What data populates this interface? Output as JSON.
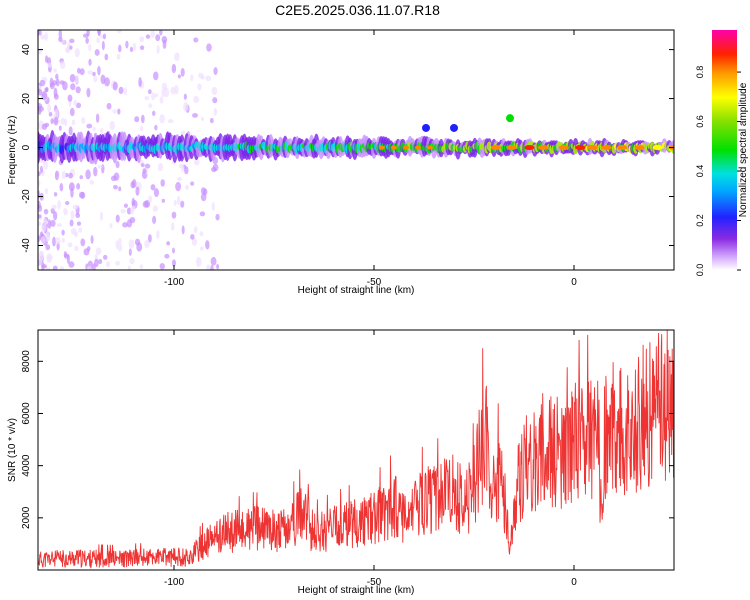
{
  "title": "C2E5.2025.036.11.07.R18",
  "chart_data": [
    {
      "type": "heatmap",
      "xlabel": "Height of straight line (km)",
      "ylabel": "Frequency (Hz)",
      "xlim": [
        -134,
        25
      ],
      "ylim": [
        -50,
        48
      ],
      "xticks": [
        -100,
        -50,
        0
      ],
      "yticks": [
        -40,
        -20,
        0,
        20,
        40
      ],
      "colorbar": {
        "label": "Normalized spectral amplitude",
        "range": [
          0,
          0.97
        ],
        "ticks": [
          0.0,
          0.2,
          0.4,
          0.6,
          0.8
        ]
      },
      "ridge": {
        "description_points": [
          [
            -134,
            0
          ],
          [
            -110,
            0
          ],
          [
            -90,
            0
          ],
          [
            -70,
            0
          ],
          [
            -50,
            0
          ],
          [
            -30,
            0
          ],
          [
            -20,
            0
          ],
          [
            -10,
            0
          ],
          [
            0,
            0
          ],
          [
            10,
            0
          ],
          [
            25,
            0
          ]
        ]
      },
      "features": [
        {
          "x": -16,
          "y": 12,
          "level": 0.6
        },
        {
          "x": -30,
          "y": 8,
          "level": 0.3
        },
        {
          "x": -37,
          "y": 8,
          "level": 0.3
        }
      ]
    },
    {
      "type": "line",
      "xlabel": "Height of straight line (km)",
      "ylabel": "SNR (10 * v/v)",
      "xlim": [
        -134,
        25
      ],
      "ylim": [
        0,
        9200
      ],
      "xticks": [
        -100,
        -50,
        0
      ],
      "yticks": [
        2000,
        4000,
        6000,
        8000
      ],
      "line_color": "#ee3333",
      "series": [
        {
          "x": [
            -134,
            -125,
            -115,
            -105,
            -96,
            -93,
            -88,
            -80,
            -72,
            -68,
            -65,
            -60,
            -55,
            -50,
            -45,
            -42,
            -38,
            -34,
            -30,
            -27,
            -25,
            -22,
            -21,
            -19,
            -17,
            -16,
            -14,
            -12,
            -10,
            -8,
            -6,
            -4,
            -2,
            0,
            2,
            4,
            6,
            7,
            8,
            9,
            10,
            12,
            14,
            16,
            18,
            20,
            22,
            25
          ],
          "y": [
            400,
            450,
            420,
            480,
            500,
            900,
            1400,
            1600,
            1500,
            2200,
            1400,
            1600,
            1800,
            2000,
            2500,
            1800,
            2600,
            2800,
            3000,
            2500,
            3200,
            5400,
            2400,
            3600,
            2500,
            700,
            3200,
            4000,
            4200,
            4600,
            4500,
            4500,
            4300,
            4800,
            5100,
            5100,
            5600,
            1400,
            5500,
            4800,
            5600,
            5700,
            4900,
            5700,
            6000,
            6200,
            6300,
            6600
          ]
        }
      ]
    }
  ]
}
